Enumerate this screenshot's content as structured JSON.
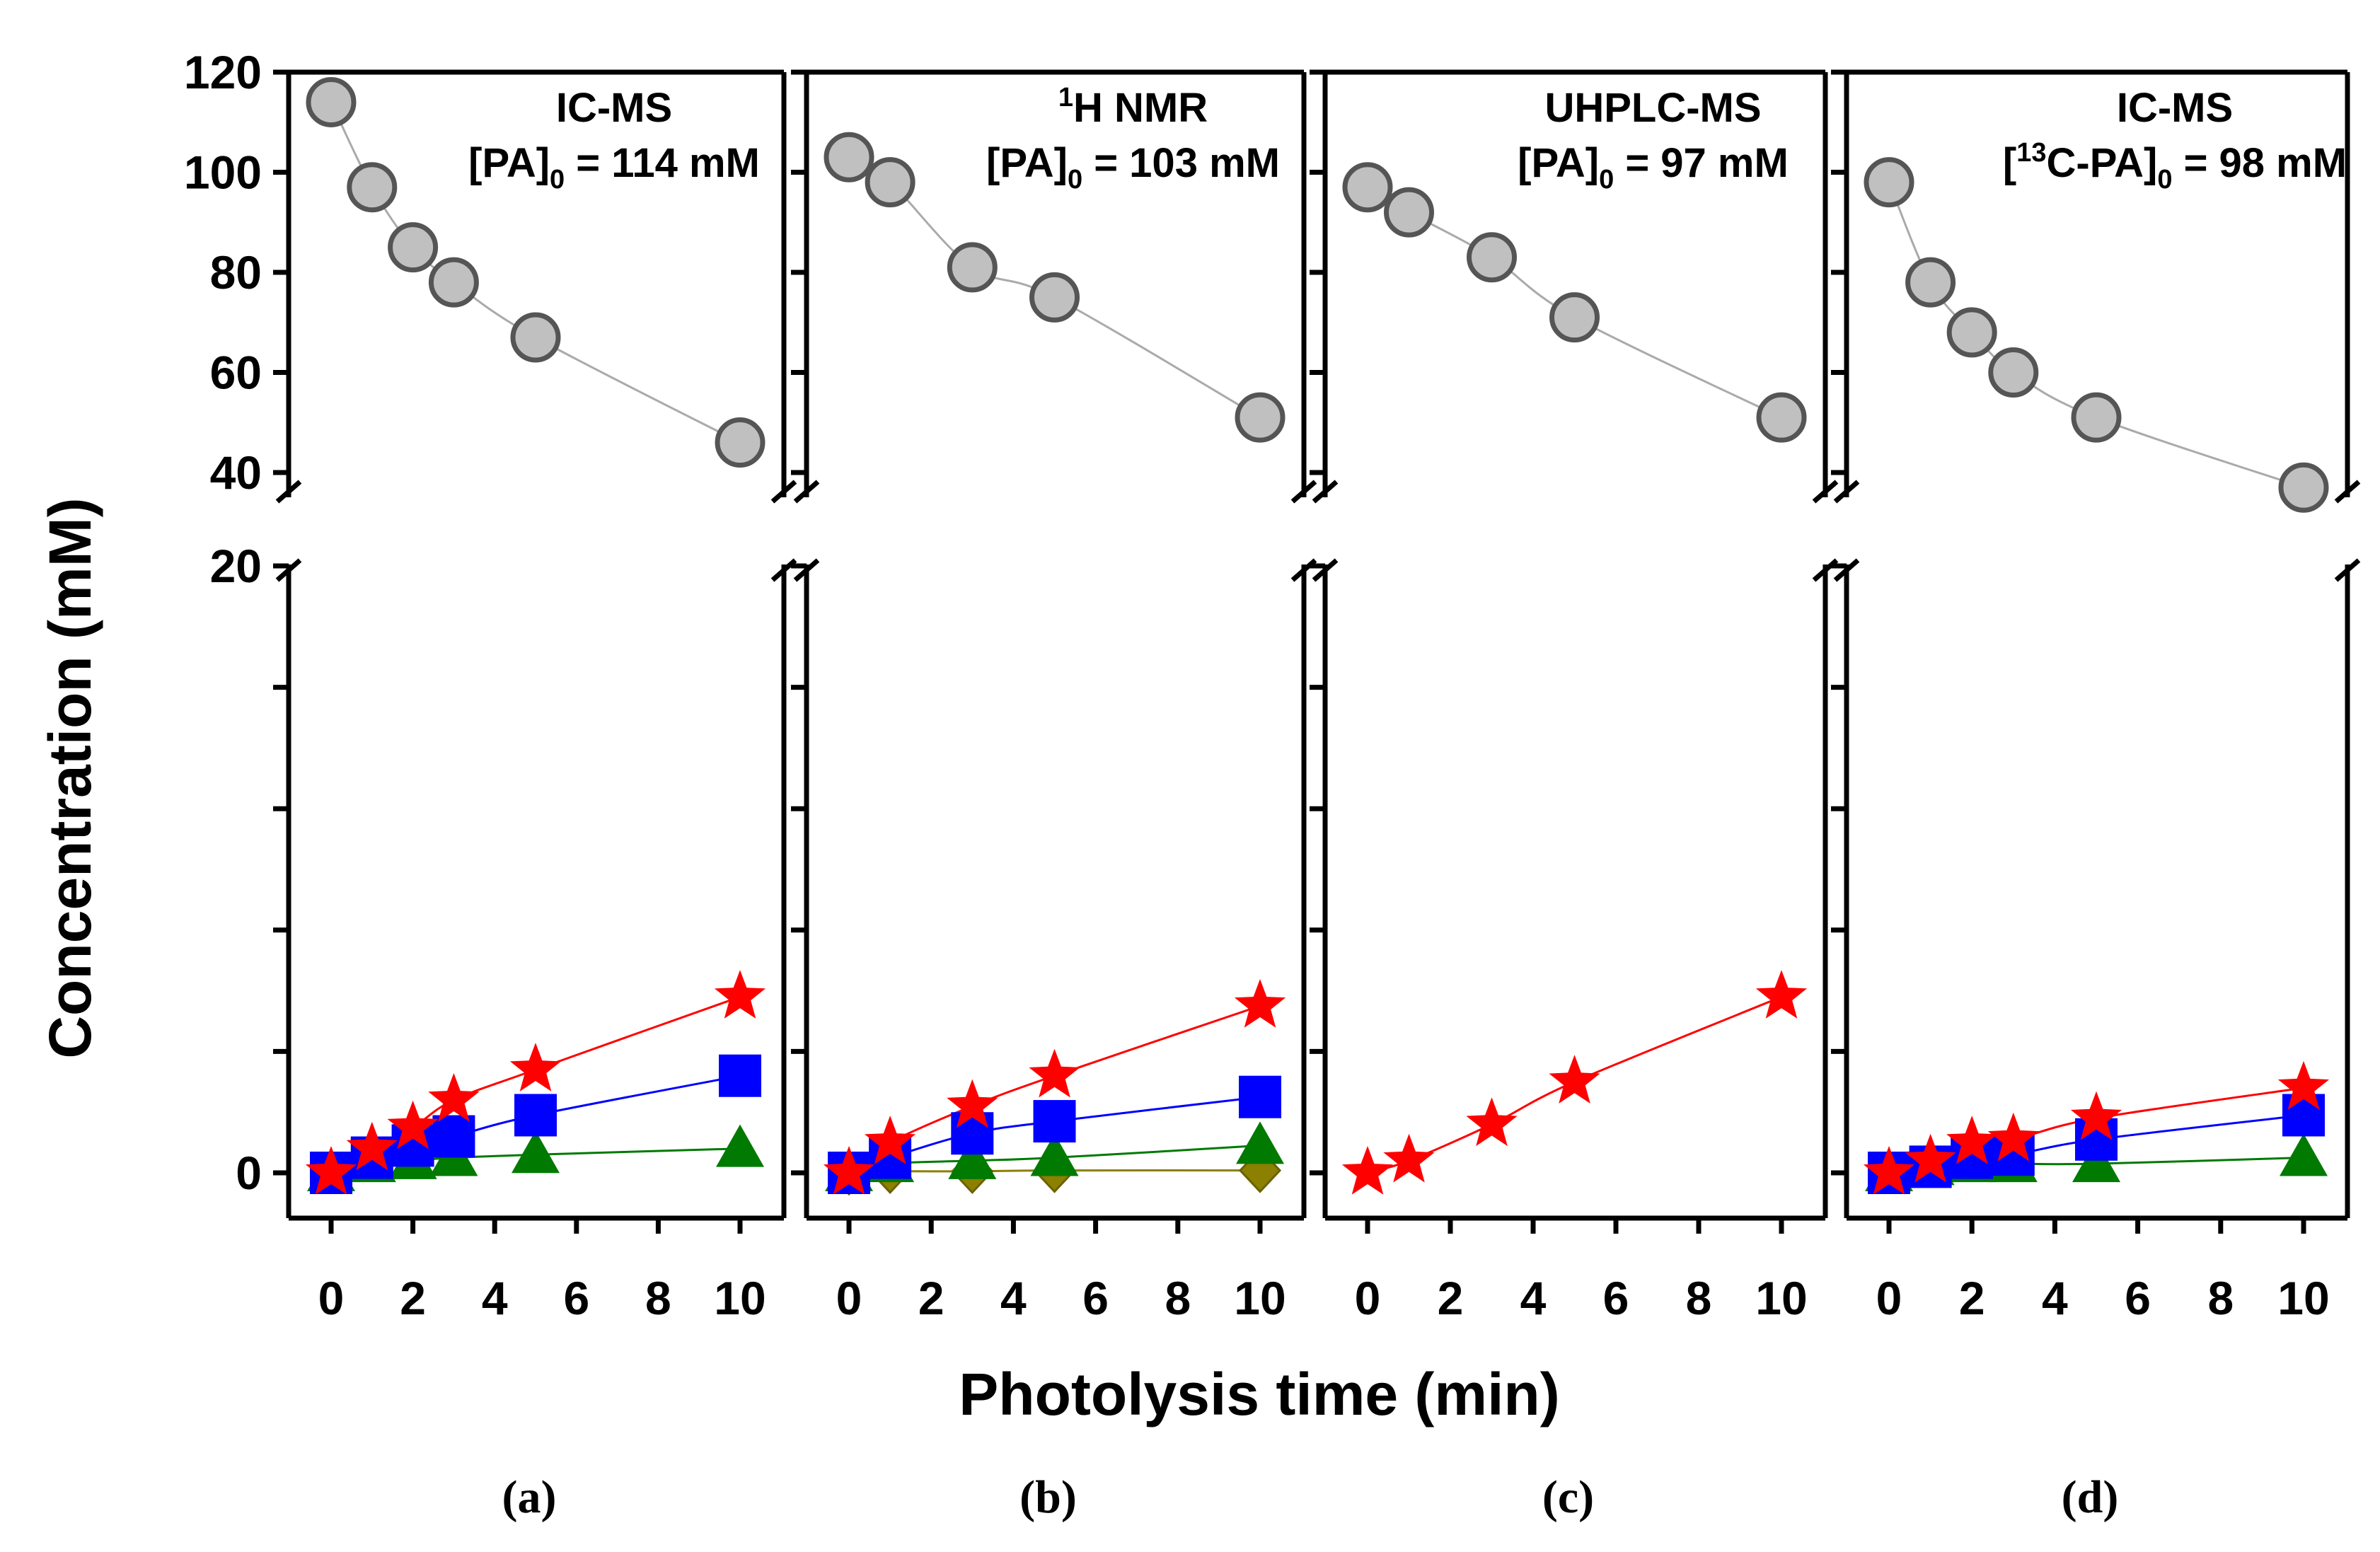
{
  "chart_data": {
    "type": "scatter",
    "ylabel": "Concentration (mM)",
    "xlabel": "Photolysis time (min)",
    "x_ticks": [
      0,
      2,
      4,
      6,
      8,
      10
    ],
    "xlim": [
      -0.8,
      11.5
    ],
    "upper_ylim": [
      35,
      120
    ],
    "upper_yticks": [
      40,
      60,
      80,
      100,
      120
    ],
    "lower_ylim": [
      -1.2,
      20
    ],
    "lower_yticks": [
      0,
      20
    ],
    "lower_minor_yticks": [
      4,
      8,
      12,
      16
    ],
    "colors": {
      "pa": "#c0c0c0",
      "pa_edge": "#555555",
      "star": "#ff0000",
      "square": "#0000ff",
      "triangle": "#007a00",
      "diamond": "#8b8000",
      "fit_gray": "#aaaaaa"
    },
    "panels": [
      {
        "label": "(a)",
        "method": "IC-MS",
        "conc_prefix": "[PA]",
        "conc_sup": "",
        "conc_sub": "0",
        "conc_suffix": " = 114 mM",
        "series": [
          {
            "name": "PA",
            "marker": "circle",
            "axis": "upper",
            "x": [
              0,
              1,
              2,
              3,
              5,
              10
            ],
            "y": [
              114,
              97,
              85,
              78,
              67,
              46
            ]
          },
          {
            "name": "star",
            "marker": "star",
            "axis": "lower",
            "x": [
              0,
              1,
              2,
              3,
              5,
              10
            ],
            "y": [
              0,
              0.8,
              1.5,
              2.4,
              3.4,
              5.8
            ]
          },
          {
            "name": "square",
            "marker": "square",
            "axis": "lower",
            "x": [
              0,
              1,
              2,
              3,
              5,
              10
            ],
            "y": [
              0,
              0.5,
              0.9,
              1.2,
              1.9,
              3.2
            ]
          },
          {
            "name": "triangle",
            "marker": "triangle",
            "axis": "lower",
            "x": [
              0,
              1,
              2,
              3,
              5,
              10
            ],
            "y": [
              0,
              0.3,
              0.4,
              0.5,
              0.6,
              0.8
            ]
          }
        ]
      },
      {
        "label": "(b)",
        "method": "",
        "method_sup": "1",
        "method_text": "H NMR",
        "conc_prefix": "[PA]",
        "conc_sup": "",
        "conc_sub": "0",
        "conc_suffix": " = 103 mM",
        "series": [
          {
            "name": "PA",
            "marker": "circle",
            "axis": "upper",
            "x": [
              0,
              1,
              3,
              5,
              10
            ],
            "y": [
              103,
              98,
              81,
              75,
              51
            ]
          },
          {
            "name": "star",
            "marker": "star",
            "axis": "lower",
            "x": [
              0,
              1,
              3,
              5,
              10
            ],
            "y": [
              0,
              1.0,
              2.2,
              3.2,
              5.5
            ]
          },
          {
            "name": "square",
            "marker": "square",
            "axis": "lower",
            "x": [
              0,
              1,
              3,
              5,
              10
            ],
            "y": [
              0,
              0.5,
              1.3,
              1.7,
              2.5
            ]
          },
          {
            "name": "triangle",
            "marker": "triangle",
            "axis": "lower",
            "x": [
              0,
              1,
              3,
              5,
              10
            ],
            "y": [
              0,
              0.3,
              0.4,
              0.5,
              0.9
            ]
          },
          {
            "name": "diamond",
            "marker": "diamond",
            "axis": "lower",
            "x": [
              0,
              1,
              3,
              5,
              10
            ],
            "y": [
              0,
              0.05,
              0.05,
              0.08,
              0.08
            ]
          }
        ]
      },
      {
        "label": "(c)",
        "method": "UHPLC-MS",
        "conc_prefix": "[PA]",
        "conc_sup": "",
        "conc_sub": "0",
        "conc_suffix": " = 97 mM",
        "series": [
          {
            "name": "PA",
            "marker": "circle",
            "axis": "upper",
            "x": [
              0,
              1,
              3,
              5,
              10
            ],
            "y": [
              97,
              92,
              83,
              71,
              51
            ]
          },
          {
            "name": "star",
            "marker": "star",
            "axis": "lower",
            "x": [
              0,
              1,
              3,
              5,
              10
            ],
            "y": [
              0,
              0.4,
              1.6,
              3.0,
              5.8
            ]
          }
        ]
      },
      {
        "label": "(d)",
        "method": "IC-MS",
        "conc_prefix": "[",
        "conc_sup": "13",
        "conc_mid": "C-PA]",
        "conc_sub": "0",
        "conc_suffix": " = 98 mM",
        "series": [
          {
            "name": "PA",
            "marker": "circle",
            "axis": "upper",
            "x": [
              0,
              1,
              2,
              3,
              5,
              10
            ],
            "y": [
              98,
              78,
              68,
              60,
              51,
              37
            ]
          },
          {
            "name": "star",
            "marker": "star",
            "axis": "lower",
            "x": [
              0,
              1,
              2,
              3,
              5,
              10
            ],
            "y": [
              0,
              0.4,
              1.0,
              1.1,
              1.8,
              2.8
            ]
          },
          {
            "name": "square",
            "marker": "square",
            "axis": "lower",
            "x": [
              0,
              1,
              2,
              3,
              5,
              10
            ],
            "y": [
              0,
              0.2,
              0.5,
              0.6,
              1.1,
              1.9
            ]
          },
          {
            "name": "triangle",
            "marker": "triangle",
            "axis": "lower",
            "x": [
              0,
              1,
              2,
              3,
              5,
              10
            ],
            "y": [
              0,
              0.2,
              0.3,
              0.3,
              0.3,
              0.5
            ]
          }
        ]
      }
    ]
  }
}
